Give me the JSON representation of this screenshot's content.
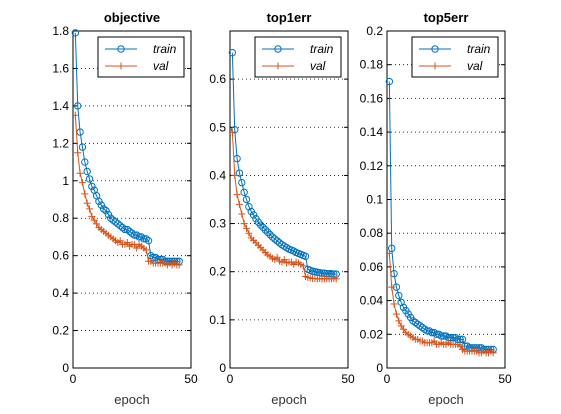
{
  "chart_data": [
    {
      "type": "line",
      "title": "objective",
      "xlabel": "epoch",
      "ylabel": "",
      "xlim": [
        0,
        50
      ],
      "ylim": [
        0,
        1.8
      ],
      "xticks": [
        0,
        50
      ],
      "yticks": [
        0,
        0.2,
        0.4,
        0.6,
        0.8,
        1,
        1.2,
        1.4,
        1.6,
        1.8
      ],
      "ytick_labels": [
        "0",
        "0.2",
        "0.4",
        "0.6",
        "0.8",
        "1",
        "1.2",
        "1.4",
        "1.6",
        "1.8"
      ],
      "grid": "horizontal-dotted",
      "legend": "top-right",
      "series": [
        {
          "name": "train",
          "color": "#0072bd",
          "marker": "circle",
          "x": [
            1,
            2,
            3,
            4,
            5,
            6,
            7,
            8,
            9,
            10,
            11,
            12,
            13,
            14,
            15,
            16,
            17,
            18,
            19,
            20,
            21,
            22,
            23,
            24,
            25,
            26,
            27,
            28,
            29,
            30,
            31,
            32,
            33,
            34,
            35,
            36,
            37,
            38,
            39,
            40,
            41,
            42,
            43,
            44,
            45
          ],
          "values": [
            1.79,
            1.4,
            1.26,
            1.18,
            1.1,
            1.05,
            1.01,
            0.97,
            0.95,
            0.92,
            0.89,
            0.87,
            0.85,
            0.84,
            0.82,
            0.8,
            0.79,
            0.78,
            0.77,
            0.76,
            0.75,
            0.74,
            0.74,
            0.73,
            0.72,
            0.71,
            0.71,
            0.7,
            0.7,
            0.69,
            0.69,
            0.68,
            0.6,
            0.59,
            0.59,
            0.58,
            0.58,
            0.58,
            0.57,
            0.57,
            0.57,
            0.57,
            0.57,
            0.57,
            0.57
          ]
        },
        {
          "name": "val",
          "color": "#d95319",
          "marker": "plus",
          "x": [
            1,
            2,
            3,
            4,
            5,
            6,
            7,
            8,
            9,
            10,
            11,
            12,
            13,
            14,
            15,
            16,
            17,
            18,
            19,
            20,
            21,
            22,
            23,
            24,
            25,
            26,
            27,
            28,
            29,
            30,
            31,
            32,
            33,
            34,
            35,
            36,
            37,
            38,
            39,
            40,
            41,
            42,
            43,
            44,
            45
          ],
          "values": [
            1.35,
            1.15,
            1.04,
            0.99,
            0.93,
            0.88,
            0.85,
            0.81,
            0.79,
            0.77,
            0.75,
            0.74,
            0.73,
            0.72,
            0.71,
            0.7,
            0.69,
            0.68,
            0.67,
            0.68,
            0.66,
            0.66,
            0.67,
            0.65,
            0.66,
            0.66,
            0.64,
            0.66,
            0.65,
            0.64,
            0.63,
            0.57,
            0.57,
            0.56,
            0.56,
            0.56,
            0.56,
            0.56,
            0.56,
            0.55,
            0.56,
            0.55,
            0.56,
            0.55,
            0.55
          ]
        }
      ]
    },
    {
      "type": "line",
      "title": "top1err",
      "xlabel": "epoch",
      "ylabel": "",
      "xlim": [
        0,
        50
      ],
      "ylim": [
        0,
        0.7
      ],
      "xticks": [
        0,
        50
      ],
      "yticks": [
        0,
        0.1,
        0.2,
        0.3,
        0.4,
        0.5,
        0.6
      ],
      "ytick_labels": [
        "0",
        "0.1",
        "0.2",
        "0.3",
        "0.4",
        "0.5",
        "0.6"
      ],
      "grid": "horizontal-dotted",
      "legend": "top-right",
      "series": [
        {
          "name": "train",
          "color": "#0072bd",
          "marker": "circle",
          "x": [
            1,
            2,
            3,
            4,
            5,
            6,
            7,
            8,
            9,
            10,
            11,
            12,
            13,
            14,
            15,
            16,
            17,
            18,
            19,
            20,
            21,
            22,
            23,
            24,
            25,
            26,
            27,
            28,
            29,
            30,
            31,
            32,
            33,
            34,
            35,
            36,
            37,
            38,
            39,
            40,
            41,
            42,
            43,
            44,
            45
          ],
          "values": [
            0.655,
            0.495,
            0.435,
            0.405,
            0.385,
            0.365,
            0.35,
            0.335,
            0.325,
            0.318,
            0.31,
            0.303,
            0.297,
            0.292,
            0.287,
            0.282,
            0.277,
            0.272,
            0.268,
            0.264,
            0.26,
            0.256,
            0.253,
            0.25,
            0.247,
            0.245,
            0.243,
            0.24,
            0.238,
            0.236,
            0.234,
            0.232,
            0.205,
            0.203,
            0.201,
            0.2,
            0.199,
            0.198,
            0.197,
            0.197,
            0.196,
            0.196,
            0.196,
            0.195,
            0.195
          ]
        },
        {
          "name": "val",
          "color": "#d95319",
          "marker": "plus",
          "x": [
            1,
            2,
            3,
            4,
            5,
            6,
            7,
            8,
            9,
            10,
            11,
            12,
            13,
            14,
            15,
            16,
            17,
            18,
            19,
            20,
            21,
            22,
            23,
            24,
            25,
            26,
            27,
            28,
            29,
            30,
            31,
            32,
            33,
            34,
            35,
            36,
            37,
            38,
            39,
            40,
            41,
            42,
            43,
            44,
            45
          ],
          "values": [
            0.49,
            0.4,
            0.36,
            0.34,
            0.32,
            0.3,
            0.29,
            0.28,
            0.27,
            0.265,
            0.26,
            0.255,
            0.25,
            0.245,
            0.24,
            0.235,
            0.232,
            0.228,
            0.225,
            0.23,
            0.222,
            0.22,
            0.225,
            0.218,
            0.22,
            0.22,
            0.215,
            0.22,
            0.218,
            0.215,
            0.212,
            0.19,
            0.188,
            0.187,
            0.186,
            0.186,
            0.185,
            0.186,
            0.185,
            0.185,
            0.186,
            0.185,
            0.185,
            0.186,
            0.185
          ]
        }
      ]
    },
    {
      "type": "line",
      "title": "top5err",
      "xlabel": "epoch",
      "ylabel": "",
      "xlim": [
        0,
        50
      ],
      "ylim": [
        0,
        0.2
      ],
      "xticks": [
        0,
        50
      ],
      "yticks": [
        0,
        0.02,
        0.04,
        0.06,
        0.08,
        0.1,
        0.12,
        0.14,
        0.16,
        0.18,
        0.2
      ],
      "ytick_labels": [
        "0",
        "0.02",
        "0.04",
        "0.06",
        "0.08",
        "0.1",
        "0.12",
        "0.14",
        "0.16",
        "0.18",
        "0.2"
      ],
      "grid": "horizontal-dotted",
      "legend": "top-right",
      "series": [
        {
          "name": "train",
          "color": "#0072bd",
          "marker": "circle",
          "x": [
            1,
            2,
            3,
            4,
            5,
            6,
            7,
            8,
            9,
            10,
            11,
            12,
            13,
            14,
            15,
            16,
            17,
            18,
            19,
            20,
            21,
            22,
            23,
            24,
            25,
            26,
            27,
            28,
            29,
            30,
            31,
            32,
            33,
            34,
            35,
            36,
            37,
            38,
            39,
            40,
            41,
            42,
            43,
            44,
            45
          ],
          "values": [
            0.17,
            0.071,
            0.056,
            0.048,
            0.043,
            0.039,
            0.036,
            0.034,
            0.032,
            0.03,
            0.028,
            0.027,
            0.026,
            0.025,
            0.024,
            0.023,
            0.022,
            0.022,
            0.021,
            0.021,
            0.02,
            0.02,
            0.019,
            0.019,
            0.019,
            0.018,
            0.018,
            0.018,
            0.018,
            0.017,
            0.017,
            0.017,
            0.013,
            0.013,
            0.012,
            0.012,
            0.012,
            0.012,
            0.012,
            0.012,
            0.011,
            0.011,
            0.011,
            0.011,
            0.011
          ]
        },
        {
          "name": "val",
          "color": "#d95319",
          "marker": "plus",
          "x": [
            1,
            2,
            3,
            4,
            5,
            6,
            7,
            8,
            9,
            10,
            11,
            12,
            13,
            14,
            15,
            16,
            17,
            18,
            19,
            20,
            21,
            22,
            23,
            24,
            25,
            26,
            27,
            28,
            29,
            30,
            31,
            32,
            33,
            34,
            35,
            36,
            37,
            38,
            39,
            40,
            41,
            42,
            43,
            44,
            45
          ],
          "values": [
            0.068,
            0.048,
            0.038,
            0.032,
            0.028,
            0.025,
            0.023,
            0.021,
            0.02,
            0.019,
            0.018,
            0.017,
            0.017,
            0.016,
            0.016,
            0.015,
            0.015,
            0.015,
            0.015,
            0.016,
            0.014,
            0.014,
            0.015,
            0.014,
            0.014,
            0.015,
            0.014,
            0.014,
            0.014,
            0.014,
            0.013,
            0.011,
            0.01,
            0.01,
            0.01,
            0.01,
            0.01,
            0.01,
            0.009,
            0.009,
            0.01,
            0.009,
            0.009,
            0.01,
            0.009
          ]
        }
      ]
    }
  ]
}
